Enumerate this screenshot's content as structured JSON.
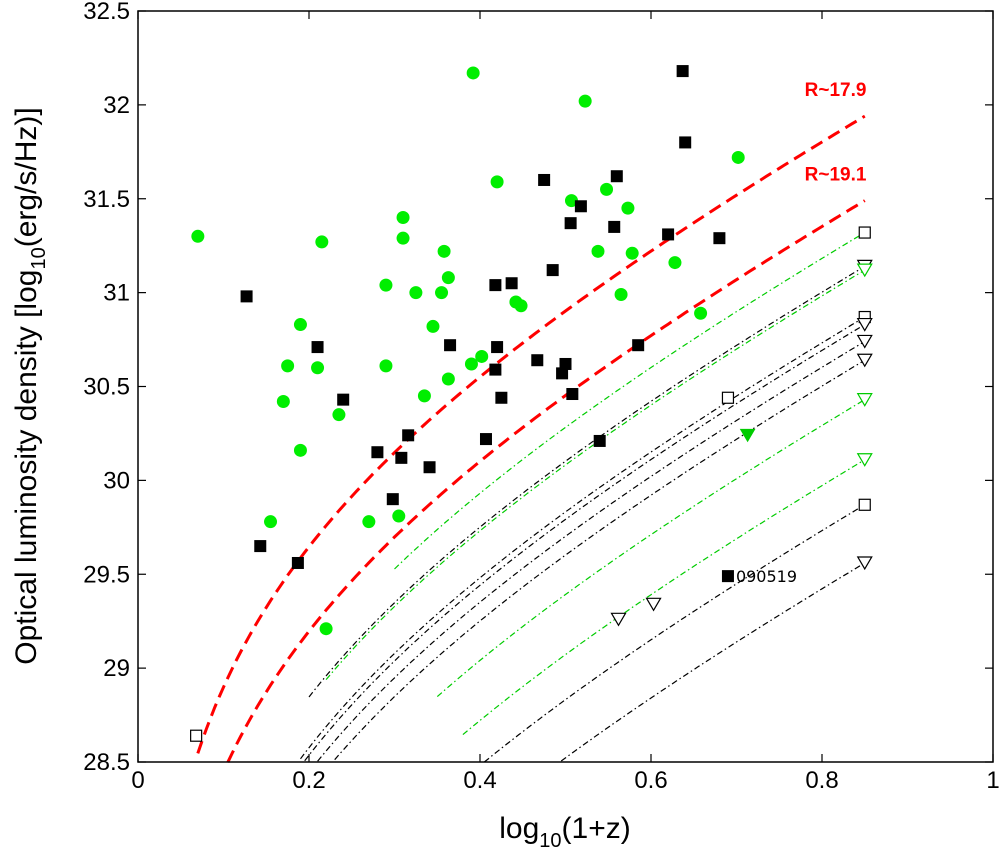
{
  "chart_data": {
    "type": "scatter",
    "xlabel": "log10(1+z)",
    "xlabel_parts": {
      "pre": "log",
      "sub": "10",
      "post": "(1+z)"
    },
    "ylabel": "Optical luminosity density [log10(erg/s/Hz)]",
    "ylabel_parts": {
      "pre": "Optical luminosity density [log",
      "sub": "10",
      "post": "(erg/s/Hz)]"
    },
    "xlim": [
      0,
      1
    ],
    "ylim": [
      28.5,
      32.5
    ],
    "xticks": [
      "0",
      "0.2",
      "0.4",
      "0.6",
      "0.8",
      "1"
    ],
    "yticks": [
      "28.5",
      "29",
      "29.5",
      "30",
      "30.5",
      "31",
      "31.5",
      "32",
      "32.5"
    ],
    "colors": {
      "red": "#ff0000",
      "green": "#00ee00",
      "black": "#000000"
    },
    "red_curves": [
      {
        "label": "R~17.9",
        "A": 31.94
      },
      {
        "label": "R~19.1",
        "A": 31.49
      }
    ],
    "limit_curves": [
      {
        "A": 31.32,
        "color": "#00cc00",
        "marker": "square",
        "x0": 0.3
      },
      {
        "A": 31.14,
        "color": "#000000",
        "marker": "triangle",
        "x0": 0.2
      },
      {
        "A": 31.12,
        "color": "#00cc00",
        "marker": "triangle",
        "x0": 0.22
      },
      {
        "A": 30.87,
        "color": "#000000",
        "marker": "square",
        "x0": 0.1
      },
      {
        "A": 30.83,
        "color": "#000000",
        "marker": "triangle",
        "x0": 0.1
      },
      {
        "A": 30.74,
        "color": "#000000",
        "marker": "triangle",
        "x0": 0.11
      },
      {
        "A": 30.64,
        "color": "#000000",
        "marker": "triangle",
        "x0": 0.12
      },
      {
        "A": 30.43,
        "color": "#00cc00",
        "marker": "triangle",
        "x0": 0.35
      },
      {
        "A": 30.11,
        "color": "#00cc00",
        "marker": "triangle",
        "x0": 0.38
      },
      {
        "A": 29.87,
        "color": "#000000",
        "marker": "square",
        "x0": 0.2
      },
      {
        "A": 29.56,
        "color": "#000000",
        "marker": "triangle",
        "x0": 0.27
      }
    ],
    "green_points": [
      {
        "x": 0.07,
        "y": 31.3
      },
      {
        "x": 0.155,
        "y": 29.78
      },
      {
        "x": 0.17,
        "y": 30.42
      },
      {
        "x": 0.175,
        "y": 30.61
      },
      {
        "x": 0.19,
        "y": 30.83
      },
      {
        "x": 0.19,
        "y": 30.16
      },
      {
        "x": 0.21,
        "y": 30.6
      },
      {
        "x": 0.215,
        "y": 31.27
      },
      {
        "x": 0.22,
        "y": 29.21
      },
      {
        "x": 0.235,
        "y": 30.35
      },
      {
        "x": 0.27,
        "y": 29.78
      },
      {
        "x": 0.29,
        "y": 31.04
      },
      {
        "x": 0.29,
        "y": 30.61
      },
      {
        "x": 0.305,
        "y": 29.81
      },
      {
        "x": 0.31,
        "y": 31.4
      },
      {
        "x": 0.31,
        "y": 31.29
      },
      {
        "x": 0.325,
        "y": 31.0
      },
      {
        "x": 0.335,
        "y": 30.45
      },
      {
        "x": 0.345,
        "y": 30.82
      },
      {
        "x": 0.355,
        "y": 31.0
      },
      {
        "x": 0.358,
        "y": 31.22
      },
      {
        "x": 0.363,
        "y": 31.08
      },
      {
        "x": 0.363,
        "y": 30.54
      },
      {
        "x": 0.392,
        "y": 32.17
      },
      {
        "x": 0.39,
        "y": 30.62
      },
      {
        "x": 0.402,
        "y": 30.66
      },
      {
        "x": 0.42,
        "y": 31.59
      },
      {
        "x": 0.442,
        "y": 30.95
      },
      {
        "x": 0.448,
        "y": 30.93
      },
      {
        "x": 0.507,
        "y": 31.49
      },
      {
        "x": 0.523,
        "y": 32.02
      },
      {
        "x": 0.538,
        "y": 31.22
      },
      {
        "x": 0.548,
        "y": 31.55
      },
      {
        "x": 0.565,
        "y": 30.99
      },
      {
        "x": 0.573,
        "y": 31.45
      },
      {
        "x": 0.578,
        "y": 31.21
      },
      {
        "x": 0.628,
        "y": 31.16
      },
      {
        "x": 0.658,
        "y": 30.89
      },
      {
        "x": 0.702,
        "y": 31.72
      }
    ],
    "black_squares": [
      {
        "x": 0.127,
        "y": 30.98
      },
      {
        "x": 0.143,
        "y": 29.65
      },
      {
        "x": 0.187,
        "y": 29.56
      },
      {
        "x": 0.21,
        "y": 30.71
      },
      {
        "x": 0.24,
        "y": 30.43
      },
      {
        "x": 0.28,
        "y": 30.15
      },
      {
        "x": 0.298,
        "y": 29.9
      },
      {
        "x": 0.308,
        "y": 30.12
      },
      {
        "x": 0.316,
        "y": 30.24
      },
      {
        "x": 0.341,
        "y": 30.07
      },
      {
        "x": 0.365,
        "y": 30.72
      },
      {
        "x": 0.407,
        "y": 30.22
      },
      {
        "x": 0.418,
        "y": 31.04
      },
      {
        "x": 0.418,
        "y": 30.59
      },
      {
        "x": 0.42,
        "y": 30.71
      },
      {
        "x": 0.425,
        "y": 30.44
      },
      {
        "x": 0.437,
        "y": 31.05
      },
      {
        "x": 0.467,
        "y": 30.64
      },
      {
        "x": 0.475,
        "y": 31.6
      },
      {
        "x": 0.485,
        "y": 31.12
      },
      {
        "x": 0.496,
        "y": 30.57
      },
      {
        "x": 0.5,
        "y": 30.62
      },
      {
        "x": 0.506,
        "y": 31.37
      },
      {
        "x": 0.508,
        "y": 30.46
      },
      {
        "x": 0.518,
        "y": 31.46
      },
      {
        "x": 0.54,
        "y": 30.21
      },
      {
        "x": 0.557,
        "y": 31.35
      },
      {
        "x": 0.56,
        "y": 31.62
      },
      {
        "x": 0.585,
        "y": 30.72
      },
      {
        "x": 0.62,
        "y": 31.31
      },
      {
        "x": 0.637,
        "y": 32.18
      },
      {
        "x": 0.64,
        "y": 31.8
      },
      {
        "x": 0.68,
        "y": 31.29
      }
    ],
    "open_squares": [
      {
        "x": 0.068,
        "y": 28.64
      },
      {
        "x": 0.69,
        "y": 30.44
      }
    ],
    "open_triangles": [
      {
        "x": 0.562,
        "y": 29.26
      },
      {
        "x": 0.603,
        "y": 29.34
      }
    ],
    "filled_triangles": [
      {
        "x": 0.713,
        "y": 30.24,
        "color": "#00cc00"
      }
    ],
    "grb_090519": {
      "x": 0.69,
      "y": 29.49,
      "label": "090519"
    }
  }
}
